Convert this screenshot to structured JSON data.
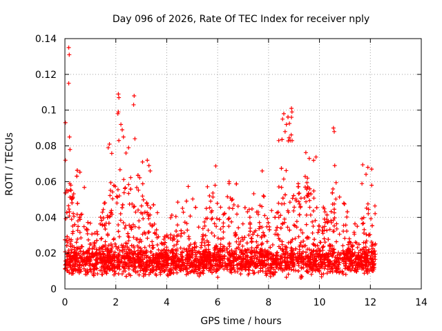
{
  "chart_data": {
    "type": "scatter",
    "title": "Day 096 of 2026, Rate Of TEC Index for receiver nply",
    "xlabel": "GPS time / hours",
    "ylabel": "ROTI / TECUs",
    "xlim": [
      0,
      14
    ],
    "ylim": [
      0,
      0.14
    ],
    "x_ticks": [
      0,
      2,
      4,
      6,
      8,
      10,
      12,
      14
    ],
    "x_tick_labels": [
      "0",
      "2",
      "4",
      "6",
      "8",
      "10",
      "12",
      "14"
    ],
    "y_ticks": [
      0,
      0.02,
      0.04,
      0.06,
      0.08,
      0.1,
      0.12,
      0.14
    ],
    "y_tick_labels": [
      "0",
      "0.02",
      "0.04",
      "0.06",
      "0.08",
      "0.1",
      "0.12",
      "0.14"
    ],
    "grid": true,
    "marker": "+",
    "color": "#ff0000",
    "series": [
      {
        "name": "ROTI",
        "x_range": [
          0.0,
          12.2
        ],
        "notable_points": [
          {
            "x": 0.15,
            "y": 0.135
          },
          {
            "x": 0.17,
            "y": 0.131
          },
          {
            "x": 0.15,
            "y": 0.115
          },
          {
            "x": 0.02,
            "y": 0.093
          },
          {
            "x": 0.18,
            "y": 0.085
          },
          {
            "x": 0.2,
            "y": 0.078
          },
          {
            "x": 0.02,
            "y": 0.072
          },
          {
            "x": 2.1,
            "y": 0.109
          },
          {
            "x": 2.12,
            "y": 0.107
          },
          {
            "x": 2.72,
            "y": 0.108
          },
          {
            "x": 2.7,
            "y": 0.103
          },
          {
            "x": 2.08,
            "y": 0.098
          },
          {
            "x": 2.1,
            "y": 0.099
          },
          {
            "x": 2.2,
            "y": 0.092
          },
          {
            "x": 2.25,
            "y": 0.089
          },
          {
            "x": 2.3,
            "y": 0.085
          },
          {
            "x": 2.75,
            "y": 0.084
          },
          {
            "x": 1.75,
            "y": 0.081
          },
          {
            "x": 1.7,
            "y": 0.079
          },
          {
            "x": 2.4,
            "y": 0.076
          },
          {
            "x": 2.5,
            "y": 0.079
          },
          {
            "x": 3.05,
            "y": 0.071
          },
          {
            "x": 3.3,
            "y": 0.069
          },
          {
            "x": 3.35,
            "y": 0.066
          },
          {
            "x": 8.9,
            "y": 0.101
          },
          {
            "x": 8.92,
            "y": 0.099
          },
          {
            "x": 8.6,
            "y": 0.098
          },
          {
            "x": 8.9,
            "y": 0.096
          },
          {
            "x": 8.7,
            "y": 0.092
          },
          {
            "x": 8.55,
            "y": 0.095
          },
          {
            "x": 8.65,
            "y": 0.088
          },
          {
            "x": 8.4,
            "y": 0.083
          },
          {
            "x": 8.85,
            "y": 0.083
          },
          {
            "x": 10.55,
            "y": 0.09
          },
          {
            "x": 10.58,
            "y": 0.088
          },
          {
            "x": 7.75,
            "y": 0.066
          },
          {
            "x": 9.6,
            "y": 0.073
          },
          {
            "x": 10.6,
            "y": 0.069
          },
          {
            "x": 12.05,
            "y": 0.067
          },
          {
            "x": 12.05,
            "y": 0.058
          },
          {
            "x": 6.45,
            "y": 0.06
          },
          {
            "x": 5.9,
            "y": 0.058
          }
        ]
      }
    ]
  }
}
